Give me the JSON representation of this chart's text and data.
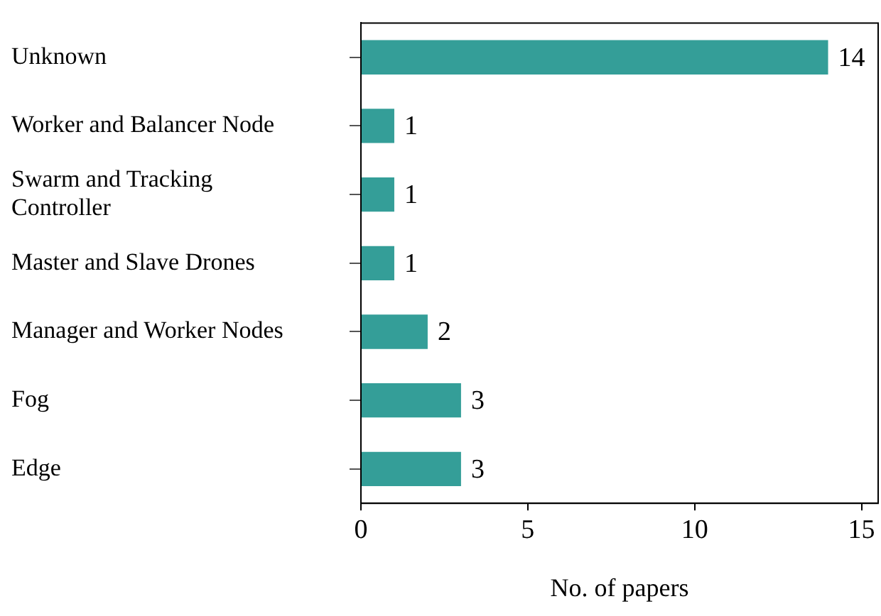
{
  "chart_data": {
    "type": "bar",
    "orientation": "horizontal",
    "xlabel": "No. of papers",
    "categories": [
      "Unknown",
      "Worker and Balancer Node",
      "Swarm and Tracking Controller",
      "Master and Slave Drones",
      "Manager and Worker Nodes",
      "Fog",
      "Edge"
    ],
    "values": [
      14,
      1,
      1,
      1,
      2,
      3,
      3
    ],
    "color": "#349e98",
    "xlim": [
      0,
      15.5
    ],
    "xticks": [
      0,
      5,
      10,
      15
    ],
    "grid": false,
    "legend": false,
    "data_labels": true
  }
}
